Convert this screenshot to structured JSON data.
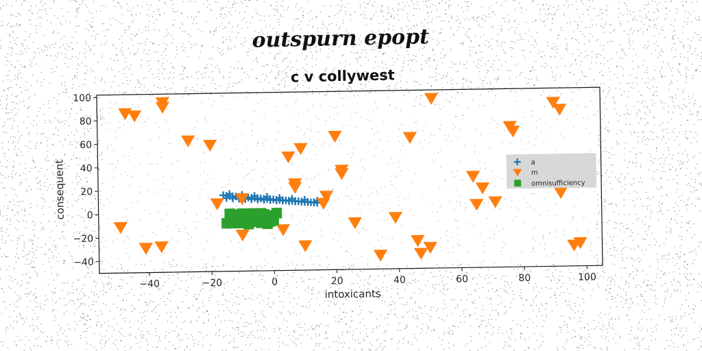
{
  "chart_data": {
    "type": "scatter",
    "suptitle": "outspurn epopt",
    "title": "c v collywest",
    "xlabel": "intoxicants",
    "ylabel": "consequent",
    "xlim": [
      -56,
      105
    ],
    "ylim": [
      -50,
      102
    ],
    "xticks": [
      -40,
      -20,
      0,
      20,
      40,
      60,
      80,
      100
    ],
    "yticks": [
      -40,
      -20,
      0,
      20,
      40,
      60,
      80,
      100
    ],
    "grid": false,
    "legend": {
      "position": "center-right"
    },
    "series": [
      {
        "name": "a",
        "marker": "plus",
        "color": "#1f77b4",
        "points": [
          [
            -16,
            15
          ],
          [
            -15,
            14.5
          ],
          [
            -14,
            14.2
          ],
          [
            -13,
            14
          ],
          [
            -12,
            13.7
          ],
          [
            -11,
            13.4
          ],
          [
            -10,
            13.2
          ],
          [
            -9,
            13
          ],
          [
            -8,
            12.7
          ],
          [
            -7,
            12.4
          ],
          [
            -6,
            12.2
          ],
          [
            -5,
            12
          ],
          [
            -4,
            11.7
          ],
          [
            -3,
            11.4
          ],
          [
            -2,
            11.2
          ],
          [
            -1,
            11
          ],
          [
            0,
            10.7
          ],
          [
            1,
            10.4
          ],
          [
            2,
            10.2
          ],
          [
            3,
            10
          ],
          [
            4,
            9.7
          ],
          [
            5,
            9.4
          ],
          [
            6,
            9.2
          ],
          [
            7,
            9
          ],
          [
            8,
            8.7
          ],
          [
            9,
            8.4
          ],
          [
            10,
            8.2
          ],
          [
            11,
            8
          ],
          [
            12,
            7.7
          ],
          [
            13,
            7.4
          ],
          [
            14,
            7.2
          ],
          [
            -15,
            12.5
          ],
          [
            -13,
            12.2
          ],
          [
            -11,
            11.8
          ],
          [
            -9,
            11.5
          ],
          [
            -7,
            11.2
          ],
          [
            -5,
            10.8
          ],
          [
            -3,
            10.5
          ],
          [
            -1,
            10.2
          ],
          [
            1,
            9.8
          ],
          [
            3,
            9.5
          ],
          [
            5,
            9.2
          ],
          [
            7,
            8.8
          ],
          [
            9,
            8.5
          ],
          [
            11,
            8.2
          ],
          [
            13,
            7.8
          ],
          [
            -14,
            16
          ],
          [
            -10,
            15
          ],
          [
            -6,
            14
          ],
          [
            -2,
            13
          ],
          [
            2,
            12
          ],
          [
            6,
            11
          ],
          [
            10,
            10
          ],
          [
            14,
            9
          ]
        ]
      },
      {
        "name": "m",
        "marker": "triangle-down",
        "color": "#ff7f0e",
        "points": [
          [
            -47,
            86
          ],
          [
            -44,
            84
          ],
          [
            -35,
            95
          ],
          [
            -35,
            91
          ],
          [
            -27,
            62
          ],
          [
            -20,
            58
          ],
          [
            -49,
            -11
          ],
          [
            -41,
            -29
          ],
          [
            -36,
            -28
          ],
          [
            -18,
            8
          ],
          [
            -10,
            12
          ],
          [
            -10,
            -19
          ],
          [
            5,
            47
          ],
          [
            7,
            24
          ],
          [
            7,
            21
          ],
          [
            9,
            54
          ],
          [
            17,
            13
          ],
          [
            20,
            64
          ],
          [
            22,
            35
          ],
          [
            22,
            32
          ],
          [
            3,
            -15
          ],
          [
            10,
            -29
          ],
          [
            16,
            7
          ],
          [
            26,
            -10
          ],
          [
            34,
            -38
          ],
          [
            39,
            -6
          ],
          [
            44,
            62
          ],
          [
            46,
            -26
          ],
          [
            47,
            -37
          ],
          [
            50,
            -32
          ],
          [
            51,
            95
          ],
          [
            64,
            28
          ],
          [
            65,
            4
          ],
          [
            67,
            18
          ],
          [
            71,
            6
          ],
          [
            76,
            70
          ],
          [
            77,
            66
          ],
          [
            90,
            90
          ],
          [
            92,
            84
          ],
          [
            92,
            13
          ],
          [
            96,
            -32
          ],
          [
            98,
            -30
          ]
        ]
      },
      {
        "name": "omnisufficiency",
        "marker": "square",
        "color": "#2ca02c",
        "points": [
          [
            -15,
            -9
          ],
          [
            -14,
            -5
          ],
          [
            -13,
            -8
          ],
          [
            -12,
            -2
          ],
          [
            -11,
            -6
          ],
          [
            -10,
            -9
          ],
          [
            -9,
            -3
          ],
          [
            -8,
            -7
          ],
          [
            -7,
            -1
          ],
          [
            -6,
            -8
          ],
          [
            -5,
            -4
          ],
          [
            -4,
            -9
          ],
          [
            -3,
            -2
          ],
          [
            -2,
            -6
          ],
          [
            -1,
            -8
          ],
          [
            0,
            -3
          ],
          [
            1,
            -1
          ],
          [
            -14,
            -1
          ],
          [
            -12,
            -9
          ],
          [
            -10,
            -1
          ],
          [
            -8,
            -10
          ],
          [
            -6,
            -2
          ],
          [
            -4,
            -1
          ],
          [
            -2,
            -10
          ],
          [
            0,
            -7
          ],
          [
            -13,
            -4
          ],
          [
            -9,
            -6
          ],
          [
            -5,
            -7
          ],
          [
            -3,
            -5
          ],
          [
            -7,
            -4
          ]
        ]
      }
    ]
  }
}
